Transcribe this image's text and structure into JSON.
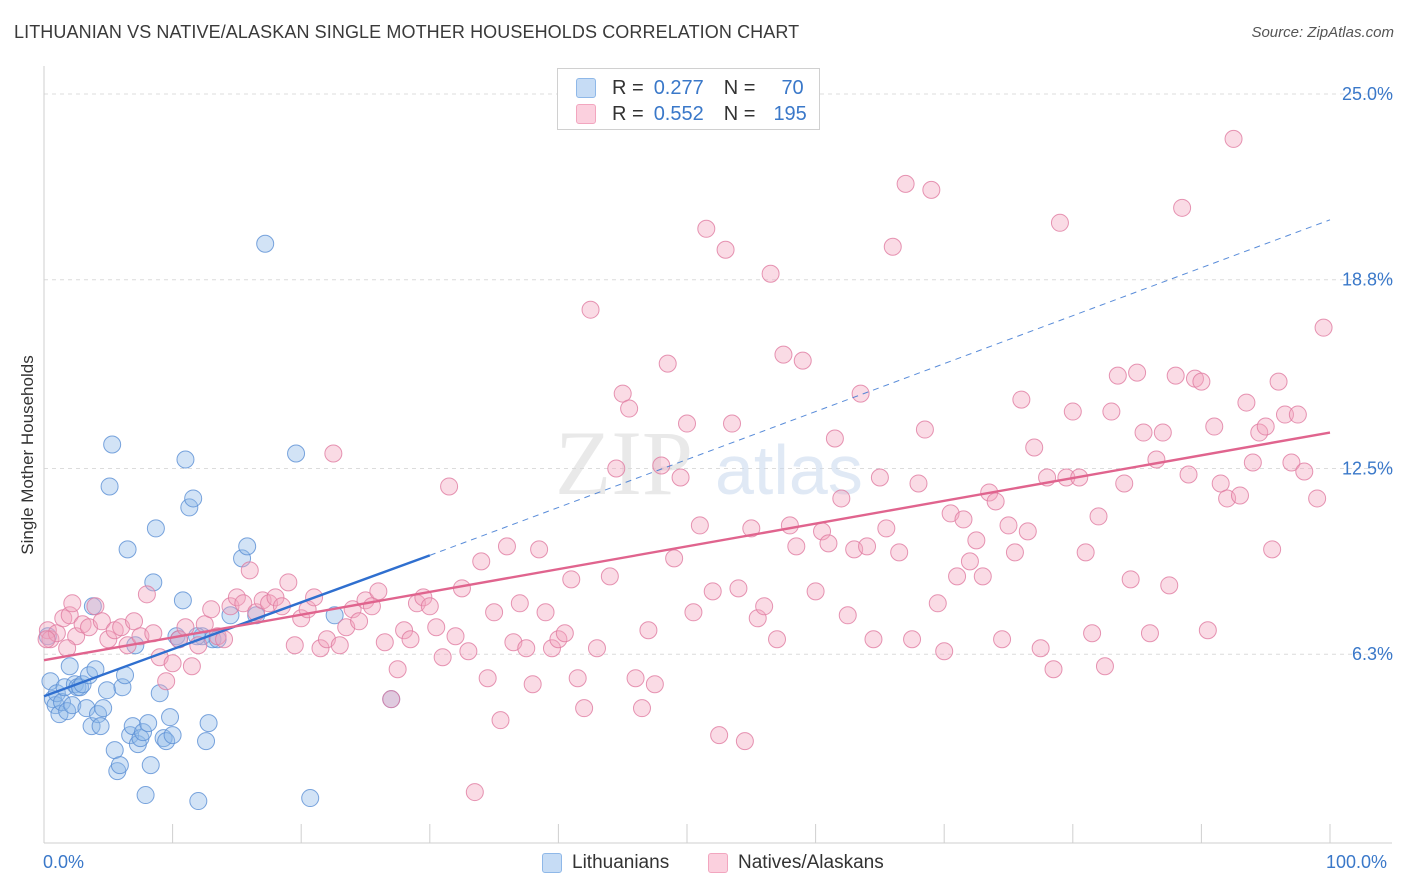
{
  "title": "LITHUANIAN VS NATIVE/ALASKAN SINGLE MOTHER HOUSEHOLDS CORRELATION CHART",
  "source": "Source: ZipAtlas.com",
  "watermark": {
    "zip": "ZIP",
    "atlas": "atlas"
  },
  "legend_top": [
    {
      "r_label": "R =",
      "r_value": "0.277",
      "n_label": "N =",
      "n_value": "70",
      "color": "#8fb8e8"
    },
    {
      "r_label": "R =",
      "r_value": "0.552",
      "n_label": "N =",
      "n_value": "195",
      "color": "#f2a6bf"
    }
  ],
  "x_tick_labels": {
    "left": "0.0%",
    "right": "100.0%"
  },
  "chart_data": {
    "type": "scatter",
    "title": "LITHUANIAN VS NATIVE/ALASKAN SINGLE MOTHER HOUSEHOLDS CORRELATION CHART",
    "xlabel": "",
    "ylabel": "Single Mother Households",
    "xlim": [
      0,
      100
    ],
    "ylim": [
      0,
      25.8
    ],
    "y_ticks": [
      {
        "value": 6.3,
        "label": "6.3%"
      },
      {
        "value": 12.5,
        "label": "12.5%"
      },
      {
        "value": 18.8,
        "label": "18.8%"
      },
      {
        "value": 25.0,
        "label": "25.0%"
      }
    ],
    "x_tick_positions": [
      0,
      10,
      20,
      30,
      40,
      50,
      60,
      70,
      80,
      90,
      100
    ],
    "grid": true,
    "legend_placement": "bottom",
    "series": [
      {
        "name": "Lithuanians",
        "color": "#8fb8e8",
        "stroke": "#5a8fd4",
        "trend": {
          "x0": 0,
          "y0": 4.9,
          "x1": 30,
          "y1": 9.6,
          "dash_to_x": 100,
          "dash_to_y": 20.8,
          "color": "#2f6fcf"
        },
        "points": [
          [
            0.3,
            6.9
          ],
          [
            0.5,
            5.4
          ],
          [
            0.7,
            4.8
          ],
          [
            0.9,
            4.6
          ],
          [
            1.0,
            5.0
          ],
          [
            1.2,
            4.3
          ],
          [
            1.4,
            4.7
          ],
          [
            1.6,
            5.2
          ],
          [
            1.8,
            4.4
          ],
          [
            2.0,
            5.9
          ],
          [
            2.2,
            4.6
          ],
          [
            2.4,
            5.3
          ],
          [
            2.6,
            5.2
          ],
          [
            2.8,
            5.2
          ],
          [
            3.0,
            5.3
          ],
          [
            3.3,
            4.5
          ],
          [
            3.5,
            5.6
          ],
          [
            3.7,
            3.9
          ],
          [
            4.0,
            5.8
          ],
          [
            4.2,
            4.3
          ],
          [
            4.4,
            3.9
          ],
          [
            4.6,
            4.5
          ],
          [
            4.9,
            5.1
          ],
          [
            5.1,
            11.9
          ],
          [
            5.3,
            13.3
          ],
          [
            5.5,
            3.1
          ],
          [
            5.7,
            2.4
          ],
          [
            5.9,
            2.6
          ],
          [
            6.1,
            5.2
          ],
          [
            6.3,
            5.6
          ],
          [
            6.5,
            9.8
          ],
          [
            6.7,
            3.6
          ],
          [
            6.9,
            3.9
          ],
          [
            7.1,
            6.6
          ],
          [
            7.3,
            3.3
          ],
          [
            7.5,
            3.5
          ],
          [
            7.7,
            3.7
          ],
          [
            7.9,
            1.6
          ],
          [
            8.1,
            4.0
          ],
          [
            8.3,
            2.6
          ],
          [
            8.5,
            8.7
          ],
          [
            8.7,
            10.5
          ],
          [
            9.0,
            5.0
          ],
          [
            9.3,
            3.5
          ],
          [
            9.5,
            3.4
          ],
          [
            9.8,
            4.2
          ],
          [
            10.0,
            3.6
          ],
          [
            10.3,
            6.9
          ],
          [
            10.5,
            6.8
          ],
          [
            10.8,
            8.1
          ],
          [
            11.0,
            12.8
          ],
          [
            11.3,
            11.2
          ],
          [
            11.6,
            11.5
          ],
          [
            12.0,
            1.4
          ],
          [
            12.3,
            6.9
          ],
          [
            12.6,
            3.4
          ],
          [
            12.8,
            4.0
          ],
          [
            13.1,
            6.8
          ],
          [
            13.5,
            6.8
          ],
          [
            14.5,
            7.6
          ],
          [
            15.4,
            9.5
          ],
          [
            15.8,
            9.9
          ],
          [
            16.5,
            7.6
          ],
          [
            17.2,
            20.0
          ],
          [
            19.6,
            13.0
          ],
          [
            20.7,
            1.5
          ],
          [
            22.6,
            7.6
          ],
          [
            27.0,
            4.8
          ],
          [
            3.8,
            7.9
          ],
          [
            11.9,
            6.9
          ]
        ]
      },
      {
        "name": "Natives/Alaskans",
        "color": "#f2a6bf",
        "stroke": "#e07aa0",
        "trend": {
          "x0": 0,
          "y0": 6.1,
          "x1": 100,
          "y1": 13.7,
          "color": "#e0648e"
        },
        "points": [
          [
            0.3,
            7.1
          ],
          [
            0.5,
            6.8
          ],
          [
            1.0,
            7.0
          ],
          [
            1.5,
            7.5
          ],
          [
            2.0,
            7.6
          ],
          [
            2.2,
            8.0
          ],
          [
            2.5,
            6.9
          ],
          [
            3.0,
            7.3
          ],
          [
            3.5,
            7.2
          ],
          [
            4.0,
            7.9
          ],
          [
            4.5,
            7.4
          ],
          [
            5.0,
            6.8
          ],
          [
            5.5,
            7.1
          ],
          [
            6.0,
            7.2
          ],
          [
            6.5,
            6.6
          ],
          [
            7.0,
            7.4
          ],
          [
            7.5,
            6.9
          ],
          [
            8.0,
            8.3
          ],
          [
            8.5,
            7.0
          ],
          [
            9.0,
            6.2
          ],
          [
            9.5,
            5.4
          ],
          [
            10.0,
            6.0
          ],
          [
            10.5,
            6.8
          ],
          [
            11.0,
            7.2
          ],
          [
            11.5,
            5.9
          ],
          [
            12.0,
            6.6
          ],
          [
            12.5,
            7.3
          ],
          [
            13.0,
            7.8
          ],
          [
            13.5,
            6.9
          ],
          [
            14.0,
            6.8
          ],
          [
            14.5,
            7.9
          ],
          [
            15.0,
            8.2
          ],
          [
            15.5,
            8.0
          ],
          [
            16.0,
            9.1
          ],
          [
            16.5,
            7.7
          ],
          [
            17.0,
            8.1
          ],
          [
            17.5,
            8.0
          ],
          [
            18.0,
            8.2
          ],
          [
            18.5,
            7.9
          ],
          [
            19.0,
            8.7
          ],
          [
            19.5,
            6.6
          ],
          [
            20.0,
            7.5
          ],
          [
            20.5,
            7.8
          ],
          [
            21.0,
            8.2
          ],
          [
            21.5,
            6.5
          ],
          [
            22.0,
            6.8
          ],
          [
            22.5,
            13.0
          ],
          [
            23.0,
            6.6
          ],
          [
            23.5,
            7.2
          ],
          [
            24.0,
            7.8
          ],
          [
            24.5,
            7.4
          ],
          [
            25.0,
            8.1
          ],
          [
            25.5,
            7.9
          ],
          [
            26.0,
            8.4
          ],
          [
            26.5,
            6.7
          ],
          [
            27.0,
            4.8
          ],
          [
            27.5,
            5.8
          ],
          [
            28.0,
            7.1
          ],
          [
            28.5,
            6.8
          ],
          [
            29.0,
            8.0
          ],
          [
            29.5,
            8.2
          ],
          [
            30.0,
            7.9
          ],
          [
            30.5,
            7.2
          ],
          [
            31.0,
            6.2
          ],
          [
            31.5,
            11.9
          ],
          [
            32.0,
            6.9
          ],
          [
            32.5,
            8.5
          ],
          [
            33.0,
            6.4
          ],
          [
            33.5,
            1.7
          ],
          [
            34.0,
            9.4
          ],
          [
            34.5,
            5.5
          ],
          [
            35.0,
            7.7
          ],
          [
            35.5,
            4.1
          ],
          [
            36.0,
            9.9
          ],
          [
            36.5,
            6.7
          ],
          [
            37.0,
            8.0
          ],
          [
            37.5,
            6.5
          ],
          [
            38.0,
            5.3
          ],
          [
            38.5,
            9.8
          ],
          [
            39.0,
            7.7
          ],
          [
            39.5,
            6.5
          ],
          [
            40.0,
            6.8
          ],
          [
            40.5,
            7.0
          ],
          [
            41.0,
            8.8
          ],
          [
            41.5,
            5.5
          ],
          [
            42.0,
            4.5
          ],
          [
            42.5,
            17.8
          ],
          [
            43.0,
            6.5
          ],
          [
            44.0,
            8.9
          ],
          [
            44.5,
            12.5
          ],
          [
            45.0,
            15.0
          ],
          [
            45.5,
            14.5
          ],
          [
            46.0,
            5.5
          ],
          [
            46.5,
            4.5
          ],
          [
            47.0,
            7.1
          ],
          [
            47.5,
            5.3
          ],
          [
            48.0,
            12.6
          ],
          [
            48.5,
            16.0
          ],
          [
            49.0,
            9.5
          ],
          [
            49.5,
            12.2
          ],
          [
            50.0,
            14.0
          ],
          [
            50.5,
            7.7
          ],
          [
            51.0,
            10.6
          ],
          [
            51.5,
            20.5
          ],
          [
            52.0,
            8.4
          ],
          [
            52.5,
            3.6
          ],
          [
            53.0,
            19.8
          ],
          [
            53.5,
            14.0
          ],
          [
            54.0,
            8.5
          ],
          [
            54.5,
            3.4
          ],
          [
            55.0,
            10.5
          ],
          [
            55.5,
            7.5
          ],
          [
            56.0,
            7.9
          ],
          [
            56.5,
            19.0
          ],
          [
            57.0,
            6.8
          ],
          [
            57.5,
            16.3
          ],
          [
            58.0,
            10.6
          ],
          [
            58.5,
            9.9
          ],
          [
            59.0,
            16.1
          ],
          [
            60.0,
            8.4
          ],
          [
            60.5,
            10.4
          ],
          [
            61.0,
            10.0
          ],
          [
            61.5,
            13.5
          ],
          [
            62.0,
            11.5
          ],
          [
            62.5,
            7.6
          ],
          [
            63.0,
            9.8
          ],
          [
            63.5,
            15.0
          ],
          [
            64.0,
            9.9
          ],
          [
            64.5,
            6.8
          ],
          [
            65.0,
            12.2
          ],
          [
            65.5,
            10.5
          ],
          [
            66.0,
            19.9
          ],
          [
            66.5,
            9.7
          ],
          [
            67.0,
            22.0
          ],
          [
            67.5,
            6.8
          ],
          [
            68.0,
            12.0
          ],
          [
            68.5,
            13.8
          ],
          [
            69.0,
            21.8
          ],
          [
            69.5,
            8.0
          ],
          [
            70.0,
            6.4
          ],
          [
            70.5,
            11.0
          ],
          [
            71.0,
            8.9
          ],
          [
            71.5,
            10.8
          ],
          [
            72.0,
            9.4
          ],
          [
            72.5,
            10.1
          ],
          [
            73.0,
            8.9
          ],
          [
            73.5,
            11.7
          ],
          [
            74.0,
            11.4
          ],
          [
            74.5,
            6.8
          ],
          [
            75.0,
            10.6
          ],
          [
            75.5,
            9.7
          ],
          [
            76.0,
            14.8
          ],
          [
            76.5,
            10.4
          ],
          [
            77.0,
            13.2
          ],
          [
            77.5,
            6.5
          ],
          [
            78.0,
            12.2
          ],
          [
            78.5,
            5.8
          ],
          [
            79.0,
            20.7
          ],
          [
            79.5,
            12.2
          ],
          [
            80.0,
            14.4
          ],
          [
            80.5,
            12.2
          ],
          [
            81.0,
            9.7
          ],
          [
            81.5,
            7.0
          ],
          [
            82.0,
            10.9
          ],
          [
            82.5,
            5.9
          ],
          [
            83.0,
            14.4
          ],
          [
            83.5,
            15.6
          ],
          [
            84.0,
            12.0
          ],
          [
            84.5,
            8.8
          ],
          [
            85.0,
            15.7
          ],
          [
            85.5,
            13.7
          ],
          [
            86.0,
            7.0
          ],
          [
            86.5,
            12.8
          ],
          [
            87.0,
            13.7
          ],
          [
            87.5,
            8.6
          ],
          [
            88.0,
            15.6
          ],
          [
            88.5,
            21.2
          ],
          [
            89.0,
            12.3
          ],
          [
            89.5,
            15.5
          ],
          [
            90.0,
            15.4
          ],
          [
            90.5,
            7.1
          ],
          [
            91.0,
            13.9
          ],
          [
            91.5,
            12.0
          ],
          [
            92.0,
            11.5
          ],
          [
            92.5,
            23.5
          ],
          [
            93.0,
            11.6
          ],
          [
            93.5,
            14.7
          ],
          [
            94.0,
            12.7
          ],
          [
            94.5,
            13.7
          ],
          [
            95.0,
            13.9
          ],
          [
            95.5,
            9.8
          ],
          [
            96.0,
            15.4
          ],
          [
            96.5,
            14.3
          ],
          [
            97.0,
            12.7
          ],
          [
            97.5,
            14.3
          ],
          [
            98.0,
            12.4
          ],
          [
            99.0,
            11.5
          ],
          [
            99.5,
            17.2
          ],
          [
            0.2,
            6.8
          ],
          [
            1.8,
            6.5
          ]
        ]
      }
    ]
  },
  "legend_bottom": [
    {
      "label": "Lithuanians",
      "color": "#8fb8e8"
    },
    {
      "label": "Natives/Alaskans",
      "color": "#f2a6bf"
    }
  ]
}
